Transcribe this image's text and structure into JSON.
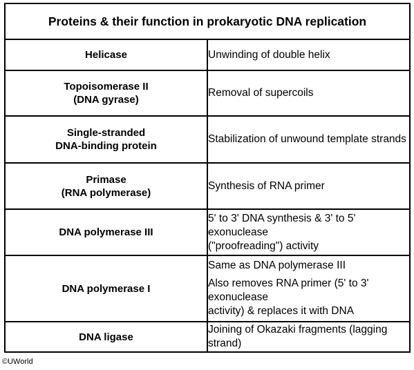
{
  "table": {
    "title": "Proteins & their function in prokaryotic DNA replication",
    "rows": [
      {
        "protein": [
          "Helicase"
        ],
        "function": [
          "Unwinding of double helix"
        ]
      },
      {
        "protein": [
          "Topoisomerase II",
          "(DNA gyrase)"
        ],
        "function": [
          "Removal of supercoils"
        ]
      },
      {
        "protein": [
          "Single-stranded",
          "DNA-binding protein"
        ],
        "function": [
          "Stabilization of unwound template strands"
        ]
      },
      {
        "protein": [
          "Primase",
          "(RNA polymerase)"
        ],
        "function": [
          "Synthesis of RNA primer"
        ]
      },
      {
        "protein": [
          "DNA polymerase III"
        ],
        "function": [
          "5' to 3' DNA synthesis & 3' to 5' exonuclease",
          "(\"proofreading\") activity"
        ]
      },
      {
        "protein": [
          "DNA polymerase I"
        ],
        "function": [
          "Same as DNA polymerase III",
          "Also removes RNA primer (5' to 3' exonuclease",
          "activity) & replaces it with DNA"
        ]
      },
      {
        "protein": [
          "DNA ligase"
        ],
        "function": [
          "Joining of Okazaki fragments (lagging strand)"
        ]
      }
    ]
  },
  "credit": "©UWorld"
}
